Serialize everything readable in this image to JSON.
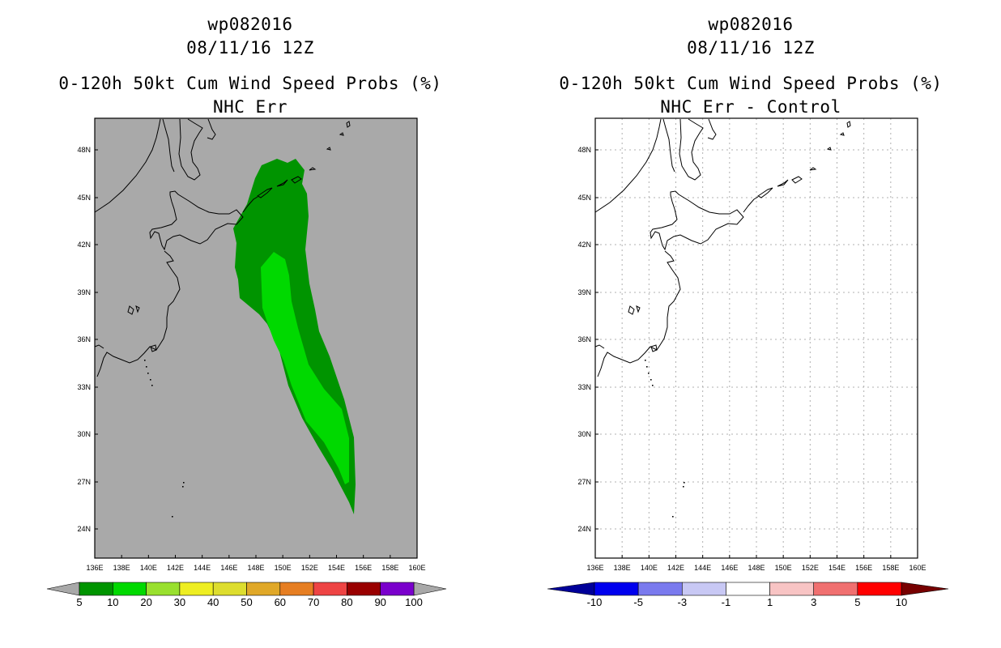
{
  "left_panel": {
    "storm_id": "wp082016",
    "datetime": "08/11/16 12Z",
    "product": "0-120h 50kt Cum Wind Speed Probs (%)",
    "subtitle": "NHC Err",
    "colorbar": {
      "labels": [
        "5",
        "10",
        "20",
        "30",
        "40",
        "50",
        "60",
        "70",
        "80",
        "90",
        "100"
      ],
      "colors": [
        "#009400",
        "#00d900",
        "#99e02e",
        "#eeee22",
        "#dddd2e",
        "#e0a828",
        "#e67e22",
        "#ee4444",
        "#990000",
        "#7a00cc"
      ],
      "arrow_color": "#a8a8a8"
    }
  },
  "right_panel": {
    "storm_id": "wp082016",
    "datetime": "08/11/16 12Z",
    "product": "0-120h 50kt Cum Wind Speed Probs (%)",
    "subtitle": "NHC Err - Control",
    "colorbar": {
      "labels": [
        "-10",
        "-5",
        "-3",
        "-1",
        "1",
        "3",
        "5",
        "10"
      ],
      "colors": [
        "#0000ee",
        "#7a7aee",
        "#c8c8f4",
        "#ffffff",
        "#f8c4c4",
        "#f07070",
        "#ff0000"
      ],
      "arrow_left_color": "#000099",
      "arrow_right_color": "#770000"
    }
  },
  "map": {
    "lon_labels": [
      "136E",
      "138E",
      "140E",
      "142E",
      "144E",
      "146E",
      "148E",
      "150E",
      "152E",
      "154E",
      "156E",
      "158E",
      "160E"
    ],
    "lat_labels": [
      "48N",
      "45N",
      "42N",
      "39N",
      "36N",
      "33N",
      "30N",
      "27N",
      "24N"
    ],
    "background_color": "#a9a9a9",
    "prob_colors": {
      "outer": "#009400",
      "inner": "#00d900"
    }
  }
}
